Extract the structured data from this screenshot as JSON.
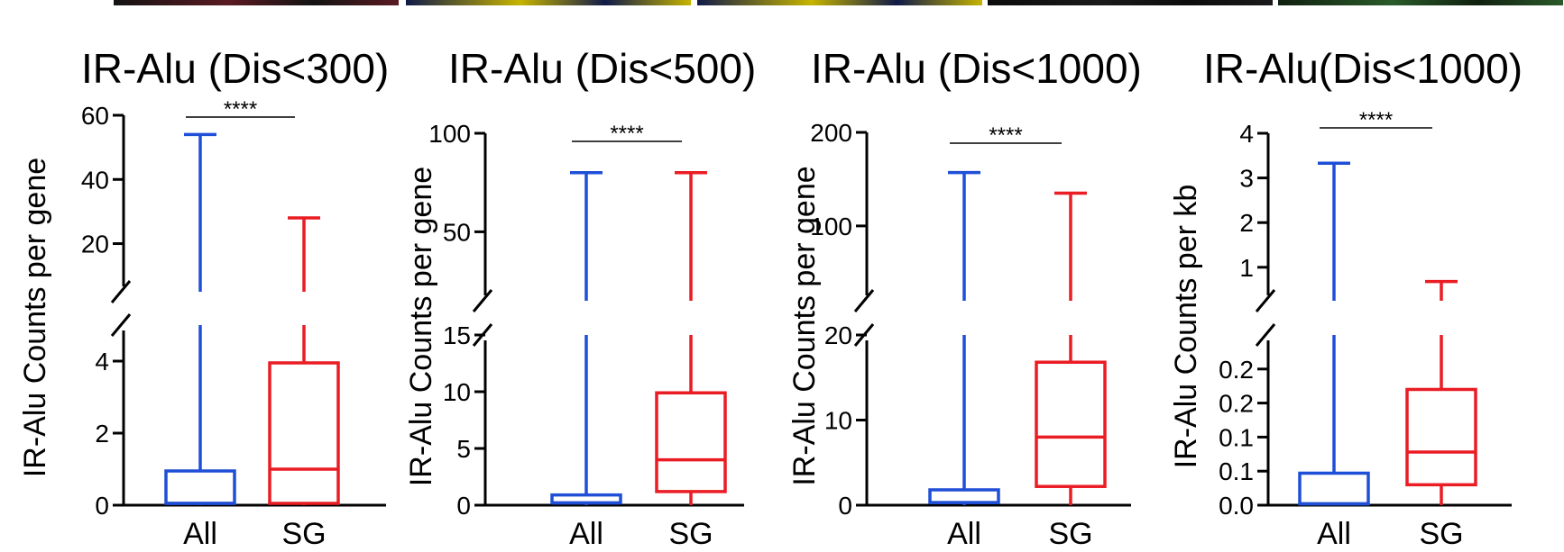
{
  "image_strip": {
    "tiles": [
      {
        "tone": "#131313",
        "accent": "#5a1a22"
      },
      {
        "tone": "#101a48",
        "accent": "#c7b400"
      },
      {
        "tone": "#101a48",
        "accent": "#c7b400"
      },
      {
        "tone": "#0c0c0c",
        "accent": "#1a1a1a"
      },
      {
        "tone": "#10200f",
        "accent": "#2a5a2a"
      }
    ]
  },
  "colors": {
    "all": "#1f4fd6",
    "sg": "#ea1c24",
    "axis": "#000000"
  },
  "chart_data": [
    {
      "type": "box",
      "title": "IR-Alu (Dis<300)",
      "ylabel": "IR-Alu Counts per gene",
      "categories": [
        "All",
        "SG"
      ],
      "axis_break": true,
      "lower_ylim": [
        0,
        5
      ],
      "upper_ylim": [
        5,
        60
      ],
      "lower_ticks": [
        {
          "value": 0,
          "label": "0"
        },
        {
          "value": 2,
          "label": "2"
        },
        {
          "value": 4,
          "label": "4"
        }
      ],
      "upper_ticks": [
        {
          "value": 20,
          "label": "20"
        },
        {
          "value": 40,
          "label": "40"
        },
        {
          "value": 60,
          "label": "60"
        }
      ],
      "series": [
        {
          "color_key": "all",
          "min": 0,
          "q1": 0.05,
          "median": 0.05,
          "q3": 0.95,
          "max": 54
        },
        {
          "color_key": "sg",
          "min": 0,
          "q1": 0.05,
          "median": 1.0,
          "q3": 3.95,
          "max": 28
        }
      ],
      "significance": "****"
    },
    {
      "type": "box",
      "title": "IR-Alu (Dis<500)",
      "ylabel": "IR-Alu Counts per gene",
      "categories": [
        "All",
        "SG"
      ],
      "axis_break": true,
      "lower_ylim": [
        0,
        15
      ],
      "upper_ylim": [
        15,
        100
      ],
      "lower_ticks": [
        {
          "value": 0,
          "label": "0"
        },
        {
          "value": 5,
          "label": "5"
        },
        {
          "value": 10,
          "label": "10"
        },
        {
          "value": 15,
          "label": "15"
        }
      ],
      "upper_ticks": [
        {
          "value": 50,
          "label": "50"
        },
        {
          "value": 100,
          "label": "100"
        }
      ],
      "series": [
        {
          "color_key": "all",
          "min": 0,
          "q1": 0.2,
          "median": 0.2,
          "q3": 0.9,
          "max": 80
        },
        {
          "color_key": "sg",
          "min": 0,
          "q1": 1.2,
          "median": 4.0,
          "q3": 9.9,
          "max": 80
        }
      ],
      "significance": "****"
    },
    {
      "type": "box",
      "title": "IR-Alu (Dis<1000)",
      "ylabel": "IR-Alu Counts per gene",
      "categories": [
        "All",
        "SG"
      ],
      "axis_break": true,
      "lower_ylim": [
        0,
        20
      ],
      "upper_ylim": [
        20,
        200
      ],
      "lower_ticks": [
        {
          "value": 0,
          "label": "0"
        },
        {
          "value": 10,
          "label": "10"
        },
        {
          "value": 20,
          "label": "20"
        }
      ],
      "upper_ticks": [
        {
          "value": 100,
          "label": "100"
        },
        {
          "value": 200,
          "label": "200"
        }
      ],
      "series": [
        {
          "color_key": "all",
          "min": 0,
          "q1": 0.3,
          "median": 0.3,
          "q3": 1.8,
          "max": 157
        },
        {
          "color_key": "sg",
          "min": 0,
          "q1": 2.2,
          "median": 8.0,
          "q3": 16.8,
          "max": 135
        }
      ],
      "significance": "****"
    },
    {
      "type": "box",
      "title": "IR-Alu(Dis<1000)",
      "ylabel": "IR-Alu Counts per kb",
      "categories": [
        "All",
        "SG"
      ],
      "axis_break": true,
      "lower_ylim": [
        0,
        0.25
      ],
      "upper_ylim": [
        0.25,
        4
      ],
      "lower_ticks": [
        {
          "value": 0,
          "label": "0.0"
        },
        {
          "value": 0.05,
          "label": "0.1"
        },
        {
          "value": 0.1,
          "label": "0.1"
        },
        {
          "value": 0.15,
          "label": "0.2"
        },
        {
          "value": 0.2,
          "label": "0.2"
        }
      ],
      "upper_ticks": [
        {
          "value": 1,
          "label": "1"
        },
        {
          "value": 2,
          "label": "2"
        },
        {
          "value": 3,
          "label": "3"
        },
        {
          "value": 4,
          "label": "4"
        }
      ],
      "series": [
        {
          "color_key": "all",
          "min": 0,
          "q1": 0.002,
          "median": 0.002,
          "q3": 0.047,
          "max": 3.33
        },
        {
          "color_key": "sg",
          "min": 0,
          "q1": 0.03,
          "median": 0.078,
          "q3": 0.17,
          "max": 0.68
        }
      ],
      "significance": "****"
    }
  ]
}
